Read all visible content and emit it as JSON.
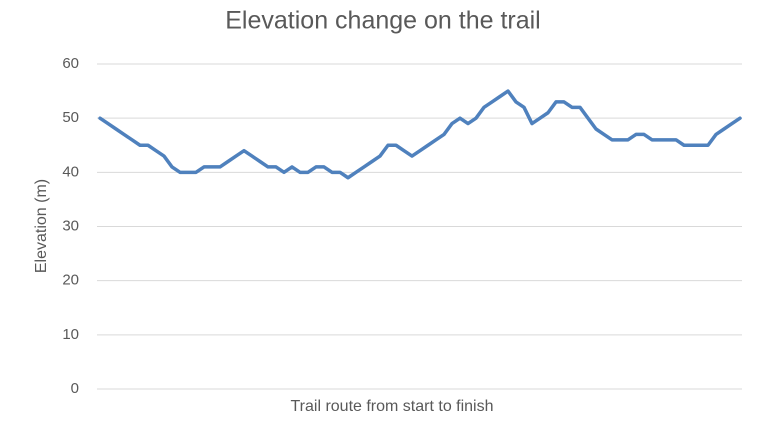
{
  "chart_data": {
    "type": "line",
    "title": "Elevation change on the trail",
    "x_label": "Trail route from start to finish",
    "y_label": "Elevation (m)",
    "categories": [
      null,
      null,
      null,
      null,
      null,
      null,
      null,
      null,
      null,
      null,
      null,
      null,
      null,
      null,
      null,
      null,
      null,
      null,
      null,
      null,
      null,
      null,
      null,
      null,
      null,
      null,
      null,
      null,
      null,
      null,
      null,
      null,
      null,
      null,
      null,
      null,
      null,
      null,
      null,
      null,
      null,
      null,
      null,
      null,
      null,
      null,
      null,
      null,
      null,
      null,
      null,
      null,
      null,
      null,
      null,
      null,
      null,
      null,
      null,
      null,
      null,
      null,
      null,
      null,
      null,
      null,
      null,
      null,
      null,
      null,
      null,
      null,
      null,
      null,
      null,
      null,
      null,
      null,
      null,
      null,
      null
    ],
    "values": [
      50,
      49,
      48,
      47,
      46,
      45,
      45,
      44,
      43,
      41,
      40,
      40,
      40,
      41,
      41,
      41,
      42,
      43,
      44,
      43,
      42,
      41,
      41,
      40,
      41,
      40,
      40,
      41,
      41,
      40,
      40,
      39,
      40,
      41,
      42,
      43,
      45,
      45,
      44,
      43,
      44,
      45,
      46,
      47,
      49,
      50,
      49,
      50,
      52,
      53,
      54,
      55,
      53,
      52,
      49,
      50,
      51,
      53,
      53,
      52,
      52,
      50,
      48,
      47,
      46,
      46,
      46,
      47,
      47,
      46,
      46,
      46,
      46,
      45,
      45,
      45,
      45,
      47,
      48,
      49,
      50
    ],
    "color": "#4f81bd",
    "ylim": [
      0,
      60
    ],
    "yticks": [
      0,
      10,
      20,
      30,
      40,
      50,
      60
    ],
    "grid": true
  }
}
